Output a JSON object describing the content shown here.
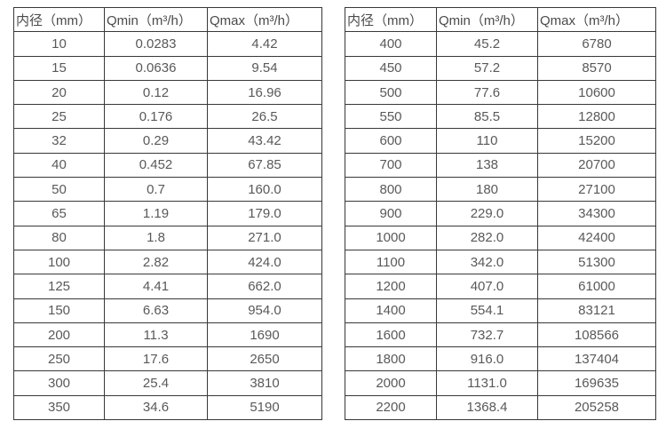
{
  "tables": [
    {
      "name": "small-diameter-flow-range",
      "headers": [
        "内径（mm）",
        "Qmin（m³/h）",
        "Qmax（m³/h）"
      ],
      "rows": [
        [
          "10",
          "0.0283",
          "4.42"
        ],
        [
          "15",
          "0.0636",
          "9.54"
        ],
        [
          "20",
          "0.12",
          "16.96"
        ],
        [
          "25",
          "0.176",
          "26.5"
        ],
        [
          "32",
          "0.29",
          "43.42"
        ],
        [
          "40",
          "0.452",
          "67.85"
        ],
        [
          "50",
          "0.7",
          "160.0"
        ],
        [
          "65",
          "1.19",
          "179.0"
        ],
        [
          "80",
          "1.8",
          "271.0"
        ],
        [
          "100",
          "2.82",
          "424.0"
        ],
        [
          "125",
          "4.41",
          "662.0"
        ],
        [
          "150",
          "6.63",
          "954.0"
        ],
        [
          "200",
          "11.3",
          "1690"
        ],
        [
          "250",
          "17.6",
          "2650"
        ],
        [
          "300",
          "25.4",
          "3810"
        ],
        [
          "350",
          "34.6",
          "5190"
        ]
      ]
    },
    {
      "name": "large-diameter-flow-range",
      "headers": [
        "内径（mm）",
        "Qmin（m³/h）",
        "Qmax（m³/h）"
      ],
      "rows": [
        [
          "400",
          "45.2",
          "6780"
        ],
        [
          "450",
          "57.2",
          "8570"
        ],
        [
          "500",
          "77.6",
          "10600"
        ],
        [
          "550",
          "85.5",
          "12800"
        ],
        [
          "600",
          "110",
          "15200"
        ],
        [
          "700",
          "138",
          "20700"
        ],
        [
          "800",
          "180",
          "27100"
        ],
        [
          "900",
          "229.0",
          "34300"
        ],
        [
          "1000",
          "282.0",
          "42400"
        ],
        [
          "1100",
          "342.0",
          "51300"
        ],
        [
          "1200",
          "407.0",
          "61000"
        ],
        [
          "1400",
          "554.1",
          "83121"
        ],
        [
          "1600",
          "732.7",
          "108566"
        ],
        [
          "1800",
          "916.0",
          "137404"
        ],
        [
          "2000",
          "1131.0",
          "169635"
        ],
        [
          "2200",
          "1368.4",
          "205258"
        ]
      ]
    }
  ],
  "colors": {
    "border": "#383838",
    "text": "#595959",
    "background": "#ffffff"
  }
}
